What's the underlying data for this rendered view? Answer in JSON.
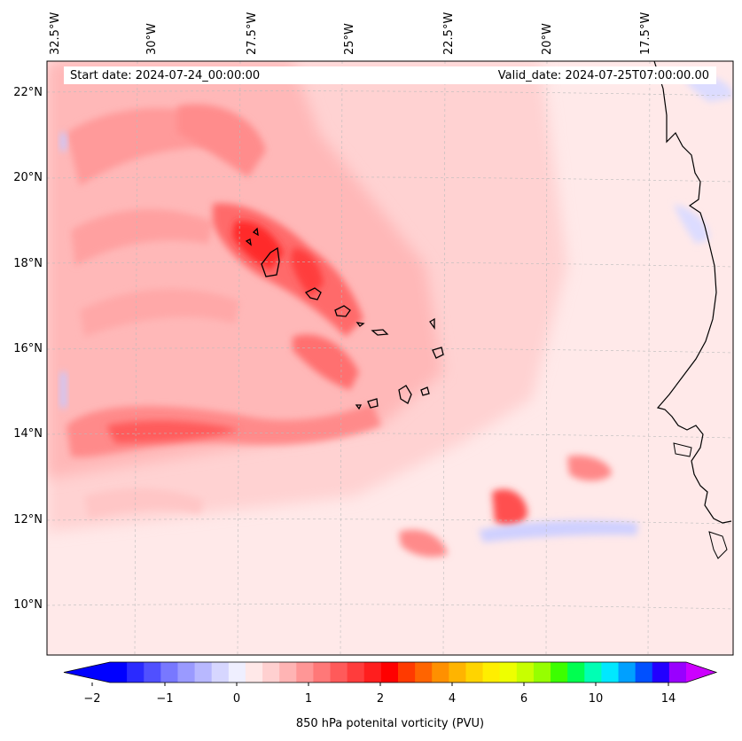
{
  "map": {
    "longitude_labels": [
      "32.5°W",
      "30°W",
      "27.5°W",
      "25°W",
      "22.5°W",
      "20°W",
      "17.5°W"
    ],
    "latitude_labels": [
      "22°N",
      "20°N",
      "18°N",
      "16°N",
      "14°N",
      "12°N",
      "10°N"
    ],
    "start_date": "Start date: 2024-07-24_00:00:00",
    "valid_date": "Valid_date: 2024-07-25T07:00:00.00",
    "field": "850 hPa potential vorticity",
    "extent": {
      "lon_min": -33,
      "lon_max": -15.5,
      "lat_min": 9,
      "lat_max": 22.8
    },
    "features": [
      "Cape Verde islands outline",
      "West African coastline (Senegal, Mauritania)"
    ]
  },
  "colorbar": {
    "title": "850 hPa potenital vorticity (PVU)",
    "tick_labels": [
      "−2",
      "−1",
      "0",
      "1",
      "2",
      "4",
      "6",
      "10",
      "14"
    ],
    "levels": [
      -2,
      -1.75,
      -1.5,
      -1.25,
      -1,
      -0.75,
      -0.5,
      -0.25,
      0,
      0.25,
      0.5,
      0.75,
      1,
      1.25,
      1.5,
      1.75,
      2,
      2.5,
      3,
      3.5,
      4,
      4.5,
      5,
      5.5,
      6,
      7,
      8,
      9,
      10,
      11,
      12,
      13,
      14,
      15
    ],
    "colors": [
      "#0000ff",
      "#2a2aff",
      "#5050ff",
      "#7878ff",
      "#9a9aff",
      "#b8b8ff",
      "#d6d6ff",
      "#efefff",
      "#ffe8e8",
      "#ffd0d0",
      "#ffb4b4",
      "#ff9696",
      "#ff7878",
      "#ff5a5a",
      "#ff3c3c",
      "#ff1e1e",
      "#ff0000",
      "#ff3a00",
      "#ff6400",
      "#ff9000",
      "#ffb400",
      "#ffd400",
      "#ffee00",
      "#eeff00",
      "#c8ff00",
      "#96ff00",
      "#3cff00",
      "#00ff50",
      "#00ffb4",
      "#00e8ff",
      "#00a0ff",
      "#0050ff",
      "#2200ff",
      "#9900ff"
    ],
    "extend_min_color": "#0000ff",
    "extend_max_color": "#cc00ff"
  }
}
